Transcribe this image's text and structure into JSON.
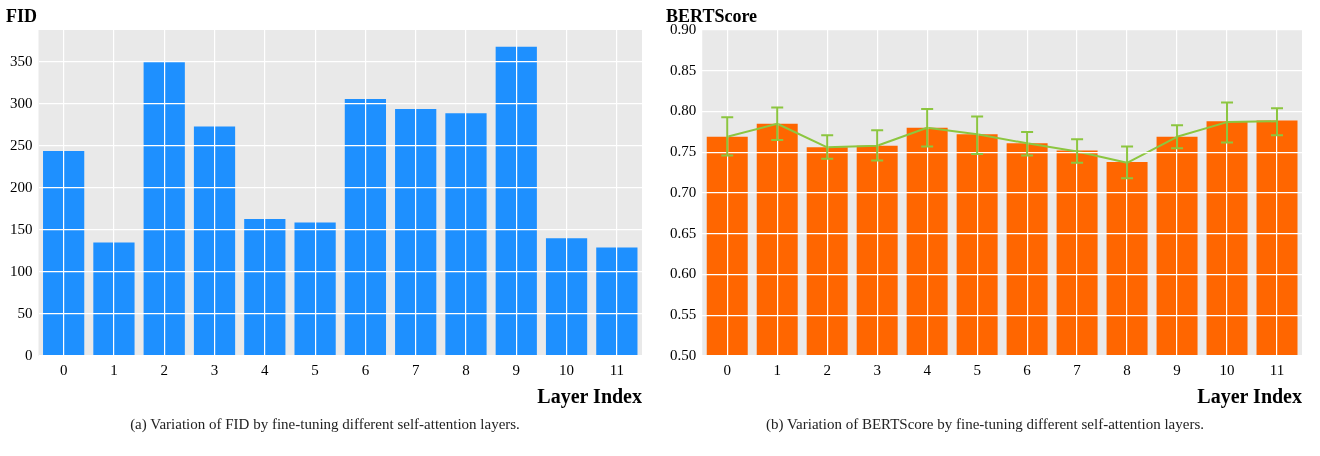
{
  "chart_data": [
    {
      "type": "bar",
      "ylabel": "FID",
      "xlabel": "Layer Index",
      "categories": [
        "0",
        "1",
        "2",
        "3",
        "4",
        "5",
        "6",
        "7",
        "8",
        "9",
        "10",
        "11"
      ],
      "values": [
        244,
        135,
        351,
        273,
        163,
        159,
        306,
        294,
        289,
        368,
        140,
        129
      ],
      "color": "#1e90ff",
      "ylim": [
        0,
        388
      ],
      "yticks": [
        0,
        50,
        100,
        150,
        200,
        250,
        300,
        350
      ],
      "grid": true,
      "legend": false,
      "annotations": [
        "(a) Variation of FID by fine-tuning different self-attention layers."
      ]
    },
    {
      "type": "bar",
      "ylabel": "BERTScore",
      "xlabel": "Layer Index",
      "categories": [
        "0",
        "1",
        "2",
        "3",
        "4",
        "5",
        "6",
        "7",
        "8",
        "9",
        "10",
        "11"
      ],
      "series": [
        {
          "type": "bar",
          "color": "#ff6600",
          "values": [
            0.769,
            0.785,
            0.756,
            0.758,
            0.78,
            0.772,
            0.761,
            0.752,
            0.738,
            0.769,
            0.788,
            0.789
          ]
        },
        {
          "type": "line",
          "color": "#8cc63f",
          "values": [
            0.769,
            0.785,
            0.756,
            0.758,
            0.78,
            0.772,
            0.761,
            0.751,
            0.737,
            0.769,
            0.787,
            0.788
          ],
          "errors": [
            [
              0.746,
              0.793
            ],
            [
              0.765,
              0.805
            ],
            [
              0.742,
              0.771
            ],
            [
              0.74,
              0.777
            ],
            [
              0.757,
              0.803
            ],
            [
              0.748,
              0.794
            ],
            [
              0.746,
              0.775
            ],
            [
              0.737,
              0.766
            ],
            [
              0.718,
              0.757
            ],
            [
              0.755,
              0.783
            ],
            [
              0.762,
              0.811
            ],
            [
              0.771,
              0.804
            ]
          ]
        }
      ],
      "ylim": [
        0.5,
        0.9
      ],
      "yticks": [
        {
          "value": 0.5,
          "label": "0.50"
        },
        {
          "value": 0.55,
          "label": "0.55"
        },
        {
          "value": 0.6,
          "label": "0.60"
        },
        {
          "value": 0.65,
          "label": "0.65"
        },
        {
          "value": 0.7,
          "label": "0.70"
        },
        {
          "value": 0.75,
          "label": "0.75"
        },
        {
          "value": 0.8,
          "label": "0.80"
        },
        {
          "value": 0.85,
          "label": "0.85"
        },
        {
          "value": 0.9,
          "label": "0.90"
        }
      ],
      "grid": true,
      "legend": false,
      "annotations": [
        "(b) Variation of BERTScore by fine-tuning different self-attention layers."
      ]
    }
  ]
}
